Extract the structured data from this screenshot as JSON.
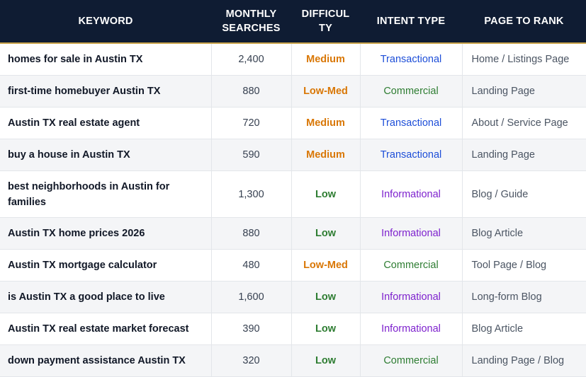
{
  "headers": {
    "keyword": "KEYWORD",
    "monthly_line1": "MONTHLY",
    "monthly_line2": "SEARCHES",
    "difficulty_line1": "DIFFICUL",
    "difficulty_line2": "TY",
    "intent": "INTENT TYPE",
    "page": "PAGE TO RANK"
  },
  "colors": {
    "header_bg": "#0f1c33",
    "accent_border": "#c9a34a",
    "Medium": "#d97706",
    "Low-Med": "#d97706",
    "Low": "#2e7d32",
    "Transactional": "#1d4ed8",
    "Commercial": "#2e7d32",
    "Informational": "#7e22ce"
  },
  "rows": [
    {
      "keyword": "homes for sale in Austin TX",
      "searches": "2,400",
      "difficulty": "Medium",
      "intent": "Transactional",
      "page": "Home / Listings Page"
    },
    {
      "keyword": "first-time homebuyer Austin TX",
      "searches": "880",
      "difficulty": "Low-Med",
      "intent": "Commercial",
      "page": "Landing Page"
    },
    {
      "keyword": "Austin TX real estate agent",
      "searches": "720",
      "difficulty": "Medium",
      "intent": "Transactional",
      "page": "About / Service Page"
    },
    {
      "keyword": "buy a house in Austin TX",
      "searches": "590",
      "difficulty": "Medium",
      "intent": "Transactional",
      "page": "Landing Page"
    },
    {
      "keyword": "best neighborhoods in Austin for families",
      "searches": "1,300",
      "difficulty": "Low",
      "intent": "Informational",
      "page": "Blog / Guide"
    },
    {
      "keyword": "Austin TX home prices 2026",
      "searches": "880",
      "difficulty": "Low",
      "intent": "Informational",
      "page": "Blog Article"
    },
    {
      "keyword": "Austin TX mortgage calculator",
      "searches": "480",
      "difficulty": "Low-Med",
      "intent": "Commercial",
      "page": "Tool Page / Blog"
    },
    {
      "keyword": "is Austin TX a good place to live",
      "searches": "1,600",
      "difficulty": "Low",
      "intent": "Informational",
      "page": "Long-form Blog"
    },
    {
      "keyword": "Austin TX real estate market forecast",
      "searches": "390",
      "difficulty": "Low",
      "intent": "Informational",
      "page": "Blog Article"
    },
    {
      "keyword": "down payment assistance Austin TX",
      "searches": "320",
      "difficulty": "Low",
      "intent": "Commercial",
      "page": "Landing Page / Blog"
    }
  ]
}
